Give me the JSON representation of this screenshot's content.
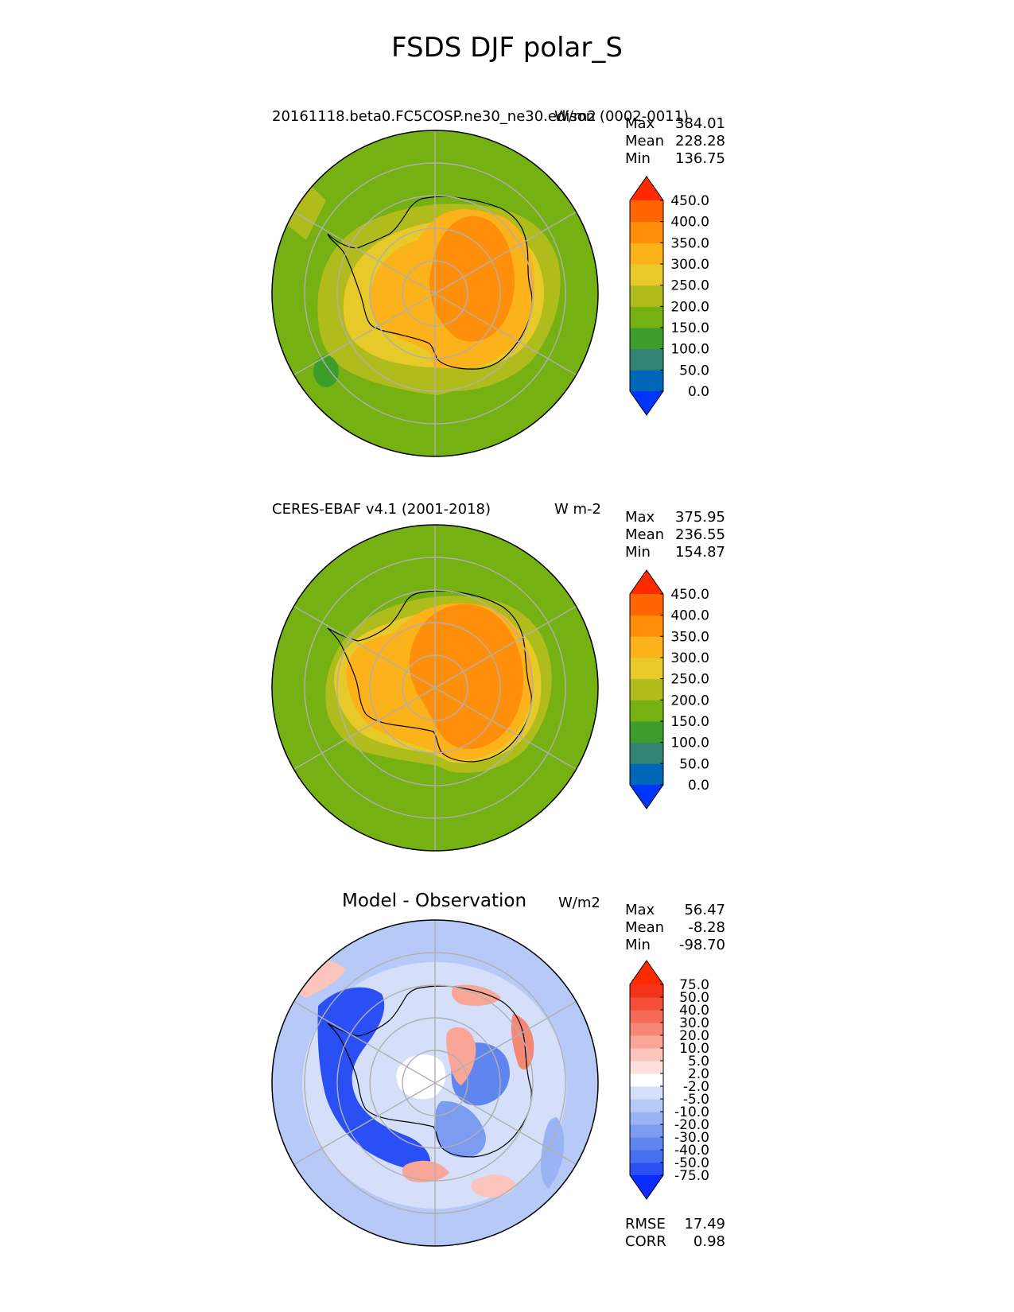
{
  "title": "FSDS DJF polar_S",
  "panels": [
    {
      "id": "test",
      "title": "20161118.beta0.FC5COSP.ne30_ne30.edison (0002-0011)",
      "units": "W/m2",
      "stats": {
        "max_label": "Max",
        "max": "384.01",
        "mean_label": "Mean",
        "mean": "228.28",
        "min_label": "Min",
        "min": "136.75"
      },
      "colorbar": {
        "levels": [
          "0.0",
          "50.0",
          "100.0",
          "150.0",
          "200.0",
          "250.0",
          "300.0",
          "350.0",
          "400.0",
          "450.0"
        ],
        "colors": [
          "#0035ff",
          "#0066b8",
          "#318474",
          "#3c9d2a",
          "#76b114",
          "#b0bc1c",
          "#e7c92a",
          "#fcb21a",
          "#ff8e0a",
          "#ff6603",
          "#ff2a00"
        ]
      }
    },
    {
      "id": "reference",
      "title": "CERES-EBAF v4.1 (2001-2018)",
      "units": "W m-2",
      "stats": {
        "max_label": "Max",
        "max": "375.95",
        "mean_label": "Mean",
        "mean": "236.55",
        "min_label": "Min",
        "min": "154.87"
      },
      "colorbar": {
        "levels": [
          "0.0",
          "50.0",
          "100.0",
          "150.0",
          "200.0",
          "250.0",
          "300.0",
          "350.0",
          "400.0",
          "450.0"
        ],
        "colors": [
          "#0035ff",
          "#0066b8",
          "#318474",
          "#3c9d2a",
          "#76b114",
          "#b0bc1c",
          "#e7c92a",
          "#fcb21a",
          "#ff8e0a",
          "#ff6603",
          "#ff2a00"
        ]
      }
    },
    {
      "id": "difference",
      "title": "Model - Observation",
      "units": "W/m2",
      "stats": {
        "max_label": "Max",
        "max": "56.47",
        "mean_label": "Mean",
        "mean": "-8.28",
        "min_label": "Min",
        "min": "-98.70"
      },
      "metrics": {
        "rmse_label": "RMSE",
        "rmse": "17.49",
        "corr_label": "CORR",
        "corr": "0.98"
      },
      "colorbar": {
        "levels": [
          "-75.0",
          "-50.0",
          "-40.0",
          "-30.0",
          "-20.0",
          "-10.0",
          "-5.0",
          "-2.0",
          "2.0",
          "5.0",
          "10.0",
          "20.0",
          "30.0",
          "40.0",
          "50.0",
          "75.0"
        ],
        "colors": [
          "#0a2cff",
          "#2a50f5",
          "#4570f0",
          "#5f86ee",
          "#7b9cf1",
          "#99b3f4",
          "#b7c9f7",
          "#d5dffa",
          "#ffffff",
          "#fde0dd",
          "#fbc4bd",
          "#f9a698",
          "#f78775",
          "#f56a55",
          "#f44e38",
          "#f23319",
          "#ff2a00"
        ]
      }
    }
  ]
}
